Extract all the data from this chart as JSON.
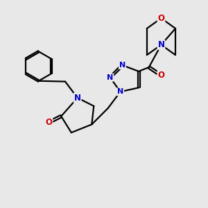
{
  "bg_color": "#e8e8e8",
  "bond_color": "#000000",
  "N_color": "#0000cc",
  "O_color": "#cc0000",
  "line_width": 1.6,
  "font_size_atom": 8.5,
  "xlim": [
    0,
    10
  ],
  "ylim": [
    0,
    10
  ]
}
